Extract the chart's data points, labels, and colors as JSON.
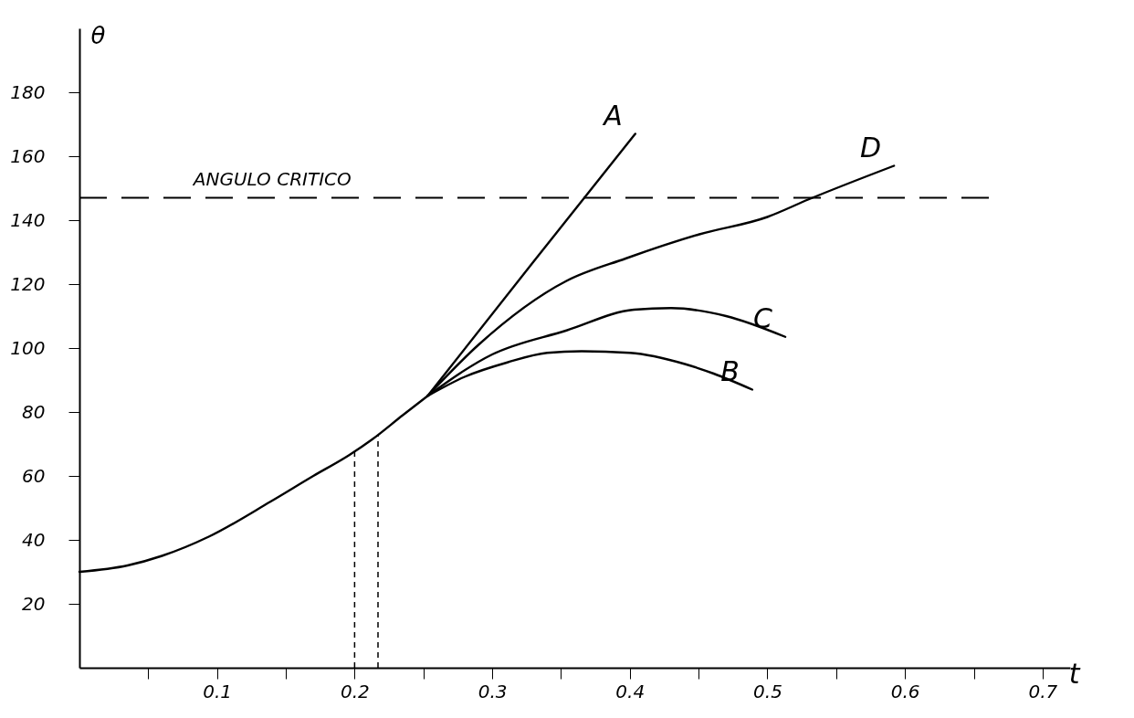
{
  "chart_data": {
    "type": "line",
    "xlabel": "t",
    "ylabel": "θ",
    "xlim": [
      0,
      0.72
    ],
    "ylim": [
      0,
      200
    ],
    "xticks": [
      {
        "value": 0.05,
        "label": null
      },
      0.1,
      {
        "value": 0.15,
        "label": null
      },
      0.2,
      {
        "value": 0.25,
        "label": null
      },
      0.3,
      {
        "value": 0.35,
        "label": null
      },
      0.4,
      {
        "value": 0.45,
        "label": null
      },
      0.5,
      {
        "value": 0.55,
        "label": null
      },
      0.6,
      {
        "value": 0.65,
        "label": null
      },
      0.7
    ],
    "yticks": [
      20,
      40,
      60,
      80,
      100,
      120,
      140,
      160,
      180
    ],
    "grid": false,
    "legend": false,
    "line_style": "solid",
    "marker": "none",
    "series": [
      {
        "color": "#000000",
        "x": [
          0,
          0.035,
          0.06,
          0.094,
          0.139,
          0.17,
          0.196,
          0.213,
          0.235,
          0.253
        ],
        "values": [
          30,
          32,
          35,
          41,
          52,
          60,
          66.5,
          71.5,
          79,
          85
        ]
      },
      {
        "name": "A",
        "color": "#000000",
        "x": [
          0.253,
          0.33,
          0.404
        ],
        "values": [
          85,
          127,
          167
        ]
      },
      {
        "name": "B",
        "color": "#000000",
        "x": [
          0.253,
          0.28,
          0.311,
          0.34,
          0.365,
          0.4,
          0.44,
          0.461,
          0.489
        ],
        "values": [
          85,
          91,
          95.5,
          98.5,
          99,
          98.5,
          95,
          92,
          87
        ]
      },
      {
        "name": "C",
        "color": "#000000",
        "x": [
          0.253,
          0.3,
          0.354,
          0.403,
          0.43,
          0.47,
          0.513
        ],
        "values": [
          85,
          98,
          105.5,
          112,
          112.5,
          110,
          103.5
        ]
      },
      {
        "name": "D",
        "color": "#000000",
        "x": [
          0.253,
          0.29,
          0.354,
          0.397,
          0.45,
          0.5,
          0.53,
          0.592
        ],
        "values": [
          85,
          101,
          121,
          128,
          135.5,
          141,
          146.5,
          157
        ]
      }
    ],
    "ref_lines": [
      {
        "axis": "y",
        "value": 147,
        "label": "ANGULO CRITICO",
        "line_style": "dashed",
        "color": "#000000"
      },
      {
        "axis": "x",
        "value": 0.2,
        "line_style": "dashed",
        "color": "#000000"
      },
      {
        "axis": "x",
        "value": 0.217,
        "line_style": "dashed",
        "color": "#000000"
      }
    ]
  }
}
